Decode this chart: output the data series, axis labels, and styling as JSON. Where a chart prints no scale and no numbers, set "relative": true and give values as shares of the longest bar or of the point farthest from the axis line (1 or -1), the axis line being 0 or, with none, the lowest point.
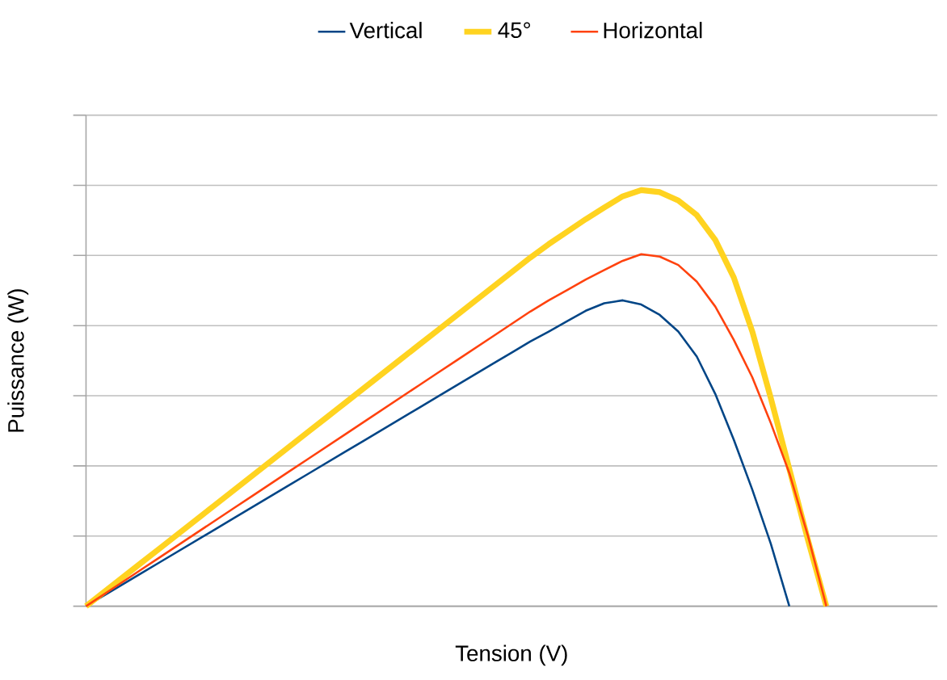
{
  "chart_data": {
    "type": "line",
    "xlabel": "Tension (V)",
    "ylabel": "Puissance (W)",
    "relative": true,
    "grid": "y",
    "legend": "top",
    "marker": "none",
    "line_style": "solid",
    "categories": [
      null,
      null,
      null,
      null,
      null,
      null,
      null,
      null,
      null,
      null,
      null,
      null,
      null,
      null,
      null,
      null,
      null,
      null,
      null,
      null,
      null,
      null,
      null,
      null,
      null,
      null,
      null,
      null,
      null,
      null,
      null,
      null,
      null,
      null,
      null,
      null,
      null,
      null,
      null,
      null,
      null,
      null,
      null,
      null,
      null,
      null,
      null
    ],
    "series": [
      {
        "name": "Vertical",
        "color": "#004586",
        "values": [
          0,
          0.0265,
          0.053,
          0.0795,
          0.106,
          0.1325,
          0.159,
          0.1855,
          0.212,
          0.2385,
          0.265,
          0.2915,
          0.318,
          0.3445,
          0.371,
          0.3975,
          0.424,
          0.4505,
          0.477,
          0.5035,
          0.53,
          0.5565,
          0.583,
          0.6095,
          0.636,
          0.66,
          0.685,
          0.71,
          0.728,
          0.735,
          0.725,
          0.7,
          0.66,
          0.6,
          0.51,
          0.4,
          0.28,
          0.15,
          0,
          null,
          null,
          null,
          null,
          null,
          null,
          null,
          null
        ]
      },
      {
        "name": "45°",
        "color": "#ffd320",
        "values": [
          0,
          0.0349,
          0.0698,
          0.1047,
          0.1396,
          0.1745,
          0.2094,
          0.2443,
          0.2792,
          0.3141,
          0.349,
          0.3839,
          0.4188,
          0.4537,
          0.4886,
          0.5235,
          0.5584,
          0.5933,
          0.6282,
          0.6631,
          0.698,
          0.7329,
          0.7678,
          0.8027,
          0.8376,
          0.87,
          0.9,
          0.93,
          0.958,
          0.985,
          1,
          0.995,
          0.975,
          0.94,
          0.88,
          0.79,
          0.66,
          0.5,
          0.33,
          0.16,
          0,
          null,
          null,
          null,
          null,
          null,
          null
        ]
      },
      {
        "name": "Horizontal",
        "color": "#ff420e",
        "values": [
          0,
          0.0295,
          0.059,
          0.0885,
          0.118,
          0.1475,
          0.177,
          0.2065,
          0.236,
          0.2655,
          0.295,
          0.3245,
          0.354,
          0.3835,
          0.413,
          0.4425,
          0.472,
          0.5015,
          0.531,
          0.5605,
          0.59,
          0.6195,
          0.649,
          0.6785,
          0.708,
          0.735,
          0.76,
          0.785,
          0.808,
          0.83,
          0.846,
          0.84,
          0.82,
          0.78,
          0.72,
          0.64,
          0.55,
          0.44,
          0.32,
          0.17,
          0,
          null,
          null,
          null,
          null,
          null,
          null
        ]
      }
    ]
  }
}
